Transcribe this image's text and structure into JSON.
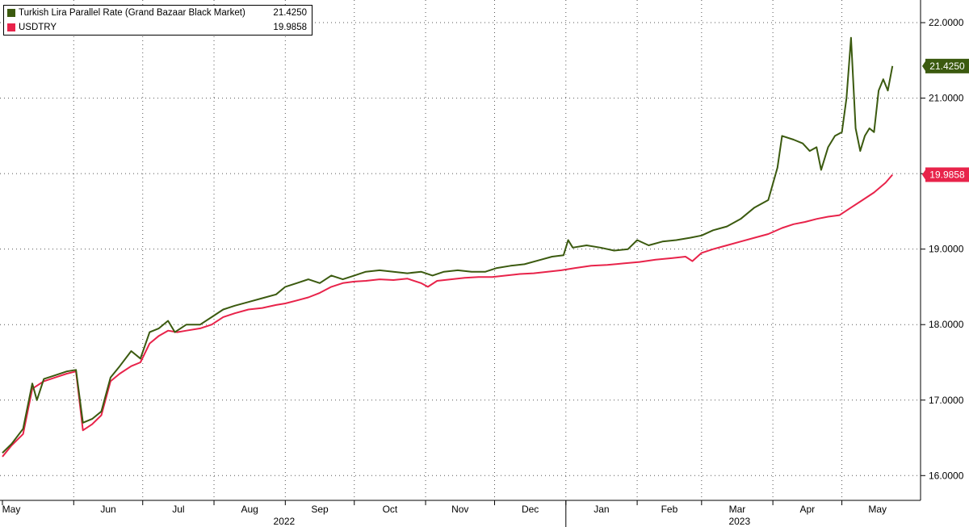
{
  "chart_data": {
    "type": "line",
    "x_range": [
      "2022-05-01",
      "2023-05-31"
    ],
    "ylim": [
      15.8,
      22.3
    ],
    "y_ticks": [
      "16.0000",
      "17.0000",
      "18.0000",
      "19.0000",
      "20.0000",
      "21.0000",
      "22.0000"
    ],
    "x_month_labels": [
      "May",
      "Jun",
      "Jul",
      "Aug",
      "Sep",
      "Oct",
      "Nov",
      "Dec",
      "Jan",
      "Feb",
      "Mar",
      "Apr",
      "May"
    ],
    "x_year_labels": [
      "2022",
      "2023"
    ],
    "grid": "dotted",
    "legend_position": "top-left",
    "series": [
      {
        "name": "Turkish Lira Parallel Rate (Grand Bazaar Black Market)",
        "last_value": "21.4250",
        "color": "#3b5a0f",
        "points": [
          [
            "2022-05-01",
            16.3
          ],
          [
            "2022-05-05",
            16.42
          ],
          [
            "2022-05-10",
            16.62
          ],
          [
            "2022-05-14",
            17.22
          ],
          [
            "2022-05-16",
            17.0
          ],
          [
            "2022-05-19",
            17.28
          ],
          [
            "2022-05-24",
            17.33
          ],
          [
            "2022-05-29",
            17.38
          ],
          [
            "2022-06-02",
            17.4
          ],
          [
            "2022-06-05",
            16.7
          ],
          [
            "2022-06-09",
            16.75
          ],
          [
            "2022-06-13",
            16.85
          ],
          [
            "2022-06-17",
            17.3
          ],
          [
            "2022-06-21",
            17.45
          ],
          [
            "2022-06-26",
            17.65
          ],
          [
            "2022-06-30",
            17.55
          ],
          [
            "2022-07-04",
            17.9
          ],
          [
            "2022-07-08",
            17.95
          ],
          [
            "2022-07-12",
            18.05
          ],
          [
            "2022-07-15",
            17.9
          ],
          [
            "2022-07-20",
            18.0
          ],
          [
            "2022-07-26",
            18.0
          ],
          [
            "2022-07-31",
            18.1
          ],
          [
            "2022-08-05",
            18.2
          ],
          [
            "2022-08-10",
            18.25
          ],
          [
            "2022-08-16",
            18.3
          ],
          [
            "2022-08-22",
            18.35
          ],
          [
            "2022-08-28",
            18.4
          ],
          [
            "2022-09-01",
            18.5
          ],
          [
            "2022-09-06",
            18.55
          ],
          [
            "2022-09-11",
            18.6
          ],
          [
            "2022-09-16",
            18.55
          ],
          [
            "2022-09-21",
            18.65
          ],
          [
            "2022-09-26",
            18.6
          ],
          [
            "2022-10-01",
            18.65
          ],
          [
            "2022-10-06",
            18.7
          ],
          [
            "2022-10-12",
            18.72
          ],
          [
            "2022-10-18",
            18.7
          ],
          [
            "2022-10-24",
            18.68
          ],
          [
            "2022-10-30",
            18.7
          ],
          [
            "2022-11-04",
            18.65
          ],
          [
            "2022-11-09",
            18.7
          ],
          [
            "2022-11-15",
            18.72
          ],
          [
            "2022-11-21",
            18.7
          ],
          [
            "2022-11-27",
            18.7
          ],
          [
            "2022-12-02",
            18.75
          ],
          [
            "2022-12-08",
            18.78
          ],
          [
            "2022-12-14",
            18.8
          ],
          [
            "2022-12-20",
            18.85
          ],
          [
            "2022-12-26",
            18.9
          ],
          [
            "2022-12-31",
            18.92
          ],
          [
            "2023-01-02",
            19.12
          ],
          [
            "2023-01-04",
            19.02
          ],
          [
            "2023-01-10",
            19.05
          ],
          [
            "2023-01-16",
            19.02
          ],
          [
            "2023-01-22",
            18.98
          ],
          [
            "2023-01-28",
            19.0
          ],
          [
            "2023-02-01",
            19.12
          ],
          [
            "2023-02-06",
            19.05
          ],
          [
            "2023-02-12",
            19.1
          ],
          [
            "2023-02-18",
            19.12
          ],
          [
            "2023-02-24",
            19.15
          ],
          [
            "2023-03-01",
            19.18
          ],
          [
            "2023-03-06",
            19.25
          ],
          [
            "2023-03-12",
            19.3
          ],
          [
            "2023-03-18",
            19.4
          ],
          [
            "2023-03-24",
            19.55
          ],
          [
            "2023-03-30",
            19.65
          ],
          [
            "2023-04-03",
            20.08
          ],
          [
            "2023-04-05",
            20.5
          ],
          [
            "2023-04-10",
            20.45
          ],
          [
            "2023-04-14",
            20.4
          ],
          [
            "2023-04-17",
            20.3
          ],
          [
            "2023-04-20",
            20.35
          ],
          [
            "2023-04-22",
            20.05
          ],
          [
            "2023-04-25",
            20.35
          ],
          [
            "2023-04-28",
            20.5
          ],
          [
            "2023-05-01",
            20.55
          ],
          [
            "2023-05-03",
            21.0
          ],
          [
            "2023-05-05",
            21.8
          ],
          [
            "2023-05-07",
            20.6
          ],
          [
            "2023-05-09",
            20.3
          ],
          [
            "2023-05-11",
            20.5
          ],
          [
            "2023-05-13",
            20.6
          ],
          [
            "2023-05-15",
            20.55
          ],
          [
            "2023-05-17",
            21.1
          ],
          [
            "2023-05-19",
            21.25
          ],
          [
            "2023-05-21",
            21.1
          ],
          [
            "2023-05-23",
            21.425
          ]
        ]
      },
      {
        "name": "USDTRY",
        "last_value": "19.9858",
        "color": "#e8234a",
        "points": [
          [
            "2022-05-01",
            16.25
          ],
          [
            "2022-05-05",
            16.4
          ],
          [
            "2022-05-10",
            16.55
          ],
          [
            "2022-05-14",
            17.15
          ],
          [
            "2022-05-19",
            17.25
          ],
          [
            "2022-05-24",
            17.3
          ],
          [
            "2022-05-29",
            17.35
          ],
          [
            "2022-06-02",
            17.38
          ],
          [
            "2022-06-05",
            16.6
          ],
          [
            "2022-06-09",
            16.68
          ],
          [
            "2022-06-13",
            16.8
          ],
          [
            "2022-06-17",
            17.25
          ],
          [
            "2022-06-21",
            17.35
          ],
          [
            "2022-06-26",
            17.45
          ],
          [
            "2022-06-30",
            17.5
          ],
          [
            "2022-07-04",
            17.75
          ],
          [
            "2022-07-08",
            17.85
          ],
          [
            "2022-07-12",
            17.92
          ],
          [
            "2022-07-16",
            17.9
          ],
          [
            "2022-07-20",
            17.92
          ],
          [
            "2022-07-26",
            17.95
          ],
          [
            "2022-07-31",
            18.0
          ],
          [
            "2022-08-05",
            18.1
          ],
          [
            "2022-08-10",
            18.15
          ],
          [
            "2022-08-16",
            18.2
          ],
          [
            "2022-08-22",
            18.22
          ],
          [
            "2022-08-28",
            18.26
          ],
          [
            "2022-09-01",
            18.28
          ],
          [
            "2022-09-06",
            18.32
          ],
          [
            "2022-09-11",
            18.36
          ],
          [
            "2022-09-16",
            18.42
          ],
          [
            "2022-09-21",
            18.5
          ],
          [
            "2022-09-26",
            18.55
          ],
          [
            "2022-10-01",
            18.57
          ],
          [
            "2022-10-06",
            18.58
          ],
          [
            "2022-10-12",
            18.6
          ],
          [
            "2022-10-18",
            18.59
          ],
          [
            "2022-10-24",
            18.61
          ],
          [
            "2022-10-30",
            18.55
          ],
          [
            "2022-11-02",
            18.5
          ],
          [
            "2022-11-06",
            18.58
          ],
          [
            "2022-11-12",
            18.6
          ],
          [
            "2022-11-18",
            18.62
          ],
          [
            "2022-11-24",
            18.63
          ],
          [
            "2022-11-30",
            18.63
          ],
          [
            "2022-12-06",
            18.65
          ],
          [
            "2022-12-12",
            18.67
          ],
          [
            "2022-12-18",
            18.68
          ],
          [
            "2022-12-24",
            18.7
          ],
          [
            "2022-12-30",
            18.72
          ],
          [
            "2023-01-05",
            18.75
          ],
          [
            "2023-01-12",
            18.78
          ],
          [
            "2023-01-19",
            18.79
          ],
          [
            "2023-01-26",
            18.81
          ],
          [
            "2023-02-02",
            18.83
          ],
          [
            "2023-02-09",
            18.86
          ],
          [
            "2023-02-16",
            18.88
          ],
          [
            "2023-02-22",
            18.9
          ],
          [
            "2023-02-25",
            18.84
          ],
          [
            "2023-03-01",
            18.95
          ],
          [
            "2023-03-06",
            19.0
          ],
          [
            "2023-03-12",
            19.05
          ],
          [
            "2023-03-18",
            19.1
          ],
          [
            "2023-03-24",
            19.15
          ],
          [
            "2023-03-30",
            19.2
          ],
          [
            "2023-04-05",
            19.28
          ],
          [
            "2023-04-10",
            19.33
          ],
          [
            "2023-04-15",
            19.36
          ],
          [
            "2023-04-20",
            19.4
          ],
          [
            "2023-04-25",
            19.43
          ],
          [
            "2023-04-30",
            19.45
          ],
          [
            "2023-05-05",
            19.55
          ],
          [
            "2023-05-10",
            19.65
          ],
          [
            "2023-05-15",
            19.75
          ],
          [
            "2023-05-20",
            19.88
          ],
          [
            "2023-05-23",
            19.9858
          ]
        ]
      }
    ]
  }
}
